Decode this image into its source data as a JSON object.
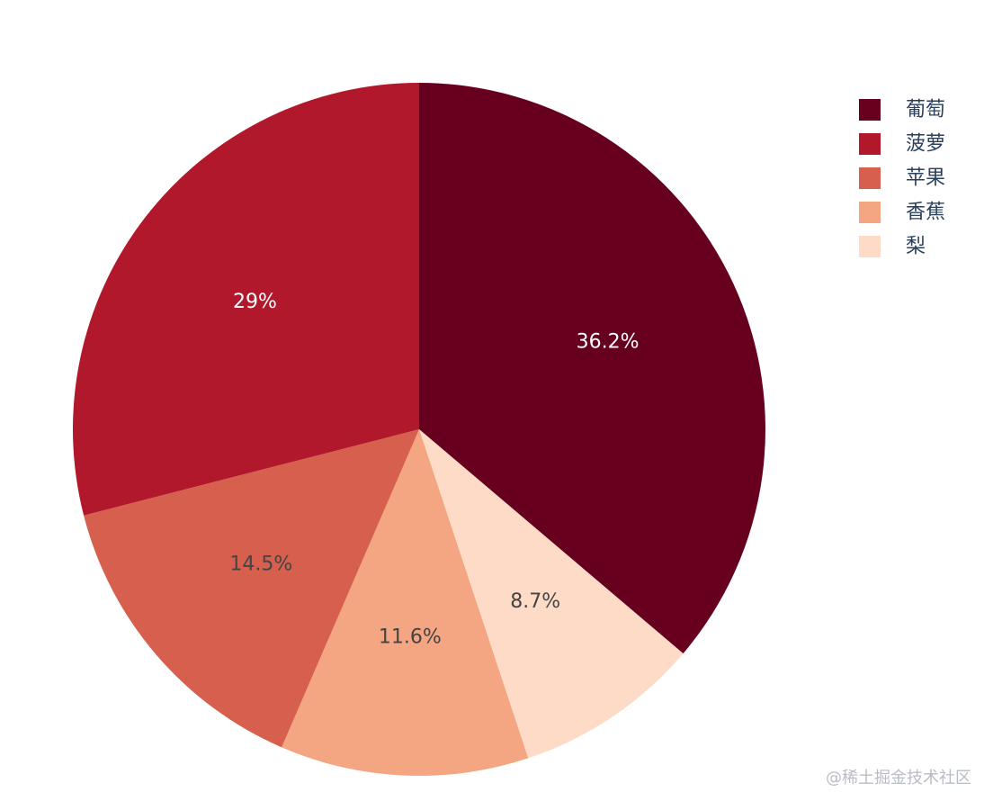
{
  "chart_data": {
    "type": "pie",
    "title": "",
    "direction": "clockwise",
    "start_angle_deg": 90,
    "labels": [
      "葡萄",
      "梨",
      "香蕉",
      "苹果",
      "菠萝"
    ],
    "values": [
      36.2,
      8.7,
      11.6,
      14.5,
      29.0
    ],
    "percent_labels": [
      "36.2%",
      "8.7%",
      "11.6%",
      "14.5%",
      "29%"
    ],
    "colors": [
      "#67001f",
      "#fddbc7",
      "#f4a582",
      "#d6604d",
      "#b2182b"
    ],
    "text_colors": [
      "#ffffff",
      "#444444",
      "#444444",
      "#444444",
      "#ffffff"
    ],
    "legend": {
      "position": "top-right",
      "entries": [
        {
          "label": "葡萄",
          "color": "#67001f"
        },
        {
          "label": "菠萝",
          "color": "#b2182b"
        },
        {
          "label": "苹果",
          "color": "#d6604d"
        },
        {
          "label": "香蕉",
          "color": "#f4a582"
        },
        {
          "label": "梨",
          "color": "#fddbc7"
        }
      ]
    }
  },
  "watermark": "@稀土掘金技术社区"
}
